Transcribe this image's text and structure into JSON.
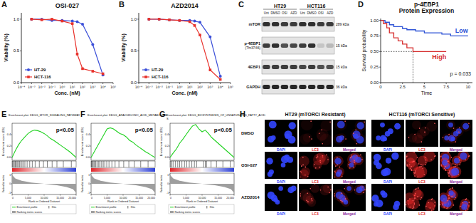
{
  "panel_labels": [
    "A",
    "B",
    "C",
    "D",
    "E",
    "F",
    "G",
    "H"
  ],
  "chart_data": [
    {
      "type": "line",
      "title": "OSI-027",
      "x_label": "Conc. (nM)",
      "y_label": "Viability (%)",
      "log": "x",
      "xlim": [
        0.0001,
        100000
      ],
      "xticks": [
        {
          "value": 0.0001,
          "label": "10⁻⁴"
        },
        {
          "value": 0.001,
          "label": "10⁻³"
        },
        {
          "value": 0.01,
          "label": "10⁻²"
        },
        {
          "value": 0.1,
          "label": "10⁻¹"
        },
        {
          "value": 1,
          "label": "10⁰"
        },
        {
          "value": 10,
          "label": "10¹"
        },
        {
          "value": 100,
          "label": "10²"
        },
        {
          "value": 1000,
          "label": "10³"
        },
        {
          "value": 10000,
          "label": "10⁴"
        },
        {
          "value": 100000,
          "label": "10⁵"
        }
      ],
      "ylim": [
        0,
        1.1
      ],
      "yticks": [
        {
          "value": 0,
          "label": "0.0"
        },
        0.5,
        {
          "value": 1,
          "label": "1.0"
        }
      ],
      "legend": "lower left",
      "x": [
        0.001,
        0.01,
        0.1,
        1,
        10,
        30,
        100,
        1000,
        10000
      ],
      "series": [
        {
          "name": "HT-29",
          "color": "#3b4fd8",
          "marker": "circle",
          "values": [
            1.0,
            1.0,
            0.98,
            0.98,
            0.97,
            0.96,
            0.92,
            0.6,
            0.12
          ]
        },
        {
          "name": "HCT-116",
          "color": "#e8302a",
          "marker": "square",
          "values": [
            1.0,
            0.99,
            1.0,
            0.97,
            0.93,
            0.45,
            0.22,
            0.18,
            0.14
          ]
        }
      ]
    },
    {
      "type": "line",
      "title": "AZD2014",
      "x_label": "Conc. (nM)",
      "y_label": "Viability (%)",
      "log": "x",
      "xlim": [
        0.0001,
        100000
      ],
      "xticks": [
        {
          "value": 0.0001,
          "label": "10⁻⁴"
        },
        {
          "value": 0.001,
          "label": "10⁻³"
        },
        {
          "value": 0.01,
          "label": "10⁻²"
        },
        {
          "value": 0.1,
          "label": "10⁻¹"
        },
        {
          "value": 1,
          "label": "10⁰"
        },
        {
          "value": 10,
          "label": "10¹"
        },
        {
          "value": 100,
          "label": "10²"
        },
        {
          "value": 1000,
          "label": "10³"
        },
        {
          "value": 10000,
          "label": "10⁴"
        },
        {
          "value": 100000,
          "label": "10⁵"
        }
      ],
      "ylim": [
        0,
        1.1
      ],
      "yticks": [
        {
          "value": 0,
          "label": "0.0"
        },
        0.5,
        {
          "value": 1,
          "label": "1.0"
        }
      ],
      "legend": "lower left",
      "x": [
        0.001,
        0.01,
        0.1,
        1,
        10,
        30,
        100,
        1000,
        10000
      ],
      "series": [
        {
          "name": "HT-29",
          "color": "#3b4fd8",
          "marker": "circle",
          "values": [
            1.0,
            1.0,
            0.99,
            0.98,
            0.98,
            0.97,
            0.95,
            0.72,
            0.1
          ]
        },
        {
          "name": "HCT-116",
          "color": "#e8302a",
          "marker": "square",
          "values": [
            1.0,
            1.0,
            0.99,
            0.98,
            0.96,
            0.9,
            0.75,
            0.2,
            0.05
          ]
        }
      ]
    },
    {
      "type": "survival",
      "title": [
        "p-4EBP1",
        "Protein Expression"
      ],
      "x_label": "Time",
      "y_label": "Survival probability",
      "xlim": [
        0,
        10.5
      ],
      "xticks": [
        0,
        2.5,
        5,
        7.5,
        10
      ],
      "ylim": [
        0,
        1.03
      ],
      "yticks": [
        {
          "value": 0,
          "label": "0.00"
        },
        0.25,
        {
          "value": 0.5,
          "label": "0.50"
        },
        0.75,
        {
          "value": 1,
          "label": "1.00"
        }
      ],
      "annotations": [
        "p = 0.033"
      ],
      "series": [
        {
          "name": "Low",
          "color": "#2e53d6",
          "line_style": "step",
          "x": [
            0,
            0.5,
            1,
            1.5,
            2.5,
            3,
            4,
            5,
            6,
            7,
            8,
            10
          ],
          "values": [
            1,
            0.97,
            0.93,
            0.9,
            0.87,
            0.85,
            0.83,
            0.8,
            0.8,
            0.78,
            0.75,
            0.75
          ]
        },
        {
          "name": "High",
          "color": "#d62e2e",
          "line_style": "step",
          "x": [
            0,
            0.3,
            0.7,
            1,
            1.5,
            2,
            2.5,
            3,
            3.7,
            5,
            7.5
          ],
          "values": [
            1,
            0.95,
            0.88,
            0.8,
            0.72,
            0.67,
            0.62,
            0.56,
            0.5,
            0.5,
            0.5
          ],
          "median_time": 3.7,
          "median_survival": 0.5
        }
      ]
    },
    {
      "type": "enrichment",
      "title": [
        "Enrichment plot: KEGG_MTOR_SIGNALING_PATHWAY"
      ],
      "y_label": "Enrichment score (ES)",
      "y2_label": "Ranked list metric",
      "x_label": "Rank in Ordered Dataset",
      "xlim": [
        0,
        20000
      ],
      "xticks": [
        0,
        {
          "value": 5000,
          "label": "5,000"
        },
        {
          "value": 10000,
          "label": "10,000"
        },
        {
          "value": 15000,
          "label": "15,000"
        },
        {
          "value": 20000,
          "label": "20,000"
        }
      ],
      "ylim": [
        -0.05,
        0.6
      ],
      "yticks": [
        {
          "value": 0,
          "label": "0.0"
        },
        0.2,
        0.4
      ],
      "y2lim": [
        -1.2,
        1.2
      ],
      "y2ticks": [
        -1,
        0,
        1
      ],
      "annotations": [
        "p<0.05"
      ],
      "series": [
        {
          "name": "Enrichment profile",
          "type": "line",
          "color": "#1fd11f",
          "x": [
            0,
            1000,
            2000,
            3000,
            4000,
            5000,
            6000,
            7000,
            8000,
            9000,
            10000,
            11000,
            12000,
            13000,
            14000,
            15000,
            16000,
            17000,
            18000,
            19000,
            20000
          ],
          "values": [
            0,
            0.12,
            0.22,
            0.3,
            0.36,
            0.42,
            0.46,
            0.48,
            0.47,
            0.45,
            0.42,
            0.38,
            0.33,
            0.3,
            0.26,
            0.22,
            0.18,
            0.14,
            0.1,
            0.05,
            0
          ]
        },
        {
          "name": "Hits",
          "type": "hits",
          "color": "#000000",
          "x": [
            150,
            400,
            700,
            1000,
            1300,
            1600,
            2000,
            2300,
            2700,
            3100,
            3600,
            4000,
            4700,
            5500,
            6300,
            7200,
            8500,
            9800,
            11000,
            12500,
            14000,
            16000,
            18500
          ]
        },
        {
          "name": "Ranking metric scores",
          "type": "area",
          "axis": "y2",
          "color": "#9e9e9e",
          "x": [
            0,
            1000,
            3000,
            6000,
            10000,
            14000,
            17000,
            19000,
            20000
          ],
          "values": [
            1.0,
            0.6,
            0.35,
            0.15,
            0,
            -0.15,
            -0.35,
            -0.6,
            -1.0
          ]
        }
      ]
    },
    {
      "type": "enrichment",
      "title": [
        "Enrichment plot: KEGG_ARACHIDONIC_ACID_METABOLISM"
      ],
      "y_label": "Enrichment score (ES)",
      "y2_label": "Ranked list metric",
      "x_label": "Rank in Ordered Dataset",
      "xlim": [
        0,
        20000
      ],
      "xticks": [
        0,
        {
          "value": 5000,
          "label": "5,000"
        },
        {
          "value": 10000,
          "label": "10,000"
        },
        {
          "value": 15000,
          "label": "15,000"
        },
        {
          "value": 20000,
          "label": "20,000"
        }
      ],
      "ylim": [
        -0.05,
        0.6
      ],
      "yticks": [
        {
          "value": 0,
          "label": "0.0"
        },
        0.2,
        0.4
      ],
      "y2lim": [
        -1.2,
        1.2
      ],
      "y2ticks": [
        -1,
        0,
        1
      ],
      "annotations": [
        "p<0.05"
      ],
      "series": [
        {
          "name": "Enrichment profile",
          "type": "line",
          "color": "#1fd11f",
          "x": [
            0,
            1000,
            2000,
            3000,
            4000,
            5000,
            6000,
            7000,
            8000,
            9000,
            10000,
            11000,
            12000,
            13000,
            14000,
            15000,
            16000,
            17000,
            18000,
            19000,
            20000
          ],
          "values": [
            0,
            0.1,
            0.2,
            0.3,
            0.4,
            0.5,
            0.52,
            0.5,
            0.46,
            0.42,
            0.4,
            0.36,
            0.3,
            0.27,
            0.22,
            0.18,
            0.14,
            0.1,
            0.07,
            0.03,
            0
          ]
        },
        {
          "name": "Hits",
          "type": "hits",
          "color": "#000000",
          "x": [
            100,
            300,
            600,
            900,
            1200,
            1500,
            1900,
            2400,
            2800,
            3300,
            3800,
            4300,
            4900,
            5600,
            6500,
            7500,
            8700,
            10200,
            11800,
            13500,
            15500,
            17800
          ]
        },
        {
          "name": "Ranking metric scores",
          "type": "area",
          "axis": "y2",
          "color": "#9e9e9e",
          "x": [
            0,
            1000,
            3000,
            6000,
            10000,
            14000,
            17000,
            19000,
            20000
          ],
          "values": [
            1.0,
            0.6,
            0.35,
            0.15,
            0,
            -0.15,
            -0.35,
            -0.6,
            -1.0
          ]
        }
      ]
    },
    {
      "type": "enrichment",
      "title": [
        "Enrichment plot: KEGG_BIOSYNTHESIS_OF_UNSATURATED_FATTY_ACID",
        "S"
      ],
      "y_label": "Enrichment score (ES)",
      "y2_label": "Ranked list metric",
      "x_label": "Rank in Ordered Dataset",
      "xlim": [
        0,
        20000
      ],
      "xticks": [
        0,
        {
          "value": 5000,
          "label": "5,000"
        },
        {
          "value": 10000,
          "label": "10,000"
        },
        {
          "value": 15000,
          "label": "15,000"
        },
        {
          "value": 20000,
          "label": "20,000"
        }
      ],
      "ylim": [
        -0.05,
        0.6
      ],
      "yticks": [
        {
          "value": 0,
          "label": "0.0"
        },
        0.2,
        0.4
      ],
      "y2lim": [
        -1.2,
        1.2
      ],
      "y2ticks": [
        -1,
        0,
        1
      ],
      "annotations": [
        "p<0.05"
      ],
      "series": [
        {
          "name": "Enrichment profile",
          "type": "line",
          "color": "#1fd11f",
          "x": [
            0,
            1000,
            2000,
            3000,
            4000,
            5000,
            6000,
            7000,
            8000,
            9000,
            10000,
            11000,
            12000,
            13000,
            14000,
            15000,
            16000,
            17000,
            18000,
            19000,
            20000
          ],
          "values": [
            0,
            0.08,
            0.15,
            0.25,
            0.32,
            0.4,
            0.48,
            0.55,
            0.58,
            0.5,
            0.45,
            0.48,
            0.42,
            0.35,
            0.3,
            0.25,
            0.2,
            0.15,
            0.1,
            0.05,
            0
          ]
        },
        {
          "name": "Hits",
          "type": "hits",
          "color": "#000000",
          "x": [
            200,
            600,
            1100,
            1700,
            2400,
            3000,
            3700,
            4500,
            5200,
            6000,
            6800,
            7600,
            8300,
            10500,
            11000,
            11400,
            12800,
            14500,
            16500,
            18800
          ]
        },
        {
          "name": "Ranking metric scores",
          "type": "area",
          "axis": "y2",
          "color": "#9e9e9e",
          "x": [
            0,
            1000,
            3000,
            6000,
            10000,
            14000,
            17000,
            19000,
            20000
          ],
          "values": [
            1.0,
            0.6,
            0.35,
            0.15,
            0,
            -0.15,
            -0.35,
            -0.6,
            -1.0
          ]
        }
      ]
    }
  ],
  "blot": {
    "groups": [
      "HT29",
      "HCT116"
    ],
    "lanes": [
      "Unt",
      "DMSO",
      "OSI",
      "AZD"
    ],
    "rows": [
      {
        "label": [
          "mTOR"
        ],
        "size": "289 kDa",
        "intensity": [
          0.85,
          0.85,
          0.8,
          0.8,
          0.85,
          0.85,
          0.8,
          0.8
        ]
      },
      {
        "label": [
          "p-4EBP1",
          "(Thr37/46)"
        ],
        "size": "15 kDa",
        "intensity": [
          0.8,
          0.85,
          0.7,
          0.75,
          0.8,
          0.85,
          0.15,
          0.2
        ]
      },
      {
        "label": [
          "4EBP1"
        ],
        "size": "15 kDa",
        "intensity": [
          0.8,
          0.8,
          0.8,
          0.8,
          0.75,
          0.8,
          0.7,
          0.7
        ]
      },
      {
        "label": [
          "GAPDH"
        ],
        "size": "36 kDa",
        "intensity": [
          0.9,
          0.9,
          0.9,
          0.9,
          0.9,
          0.9,
          0.9,
          0.9
        ]
      }
    ]
  },
  "microscopy": {
    "groups": [
      {
        "label": "HT29 (mTORCi Resistant)",
        "lc3_level": [
          0.15,
          0.55,
          0.3
        ]
      },
      {
        "label": "HCT116 (mTORCi Sensitive)",
        "lc3_level": [
          0.2,
          0.9,
          0.8
        ]
      }
    ],
    "rows": [
      "DMSO",
      "OSI-027",
      "AZD2014"
    ],
    "channels": [
      "DAPI",
      "LC3",
      "Merged"
    ]
  }
}
